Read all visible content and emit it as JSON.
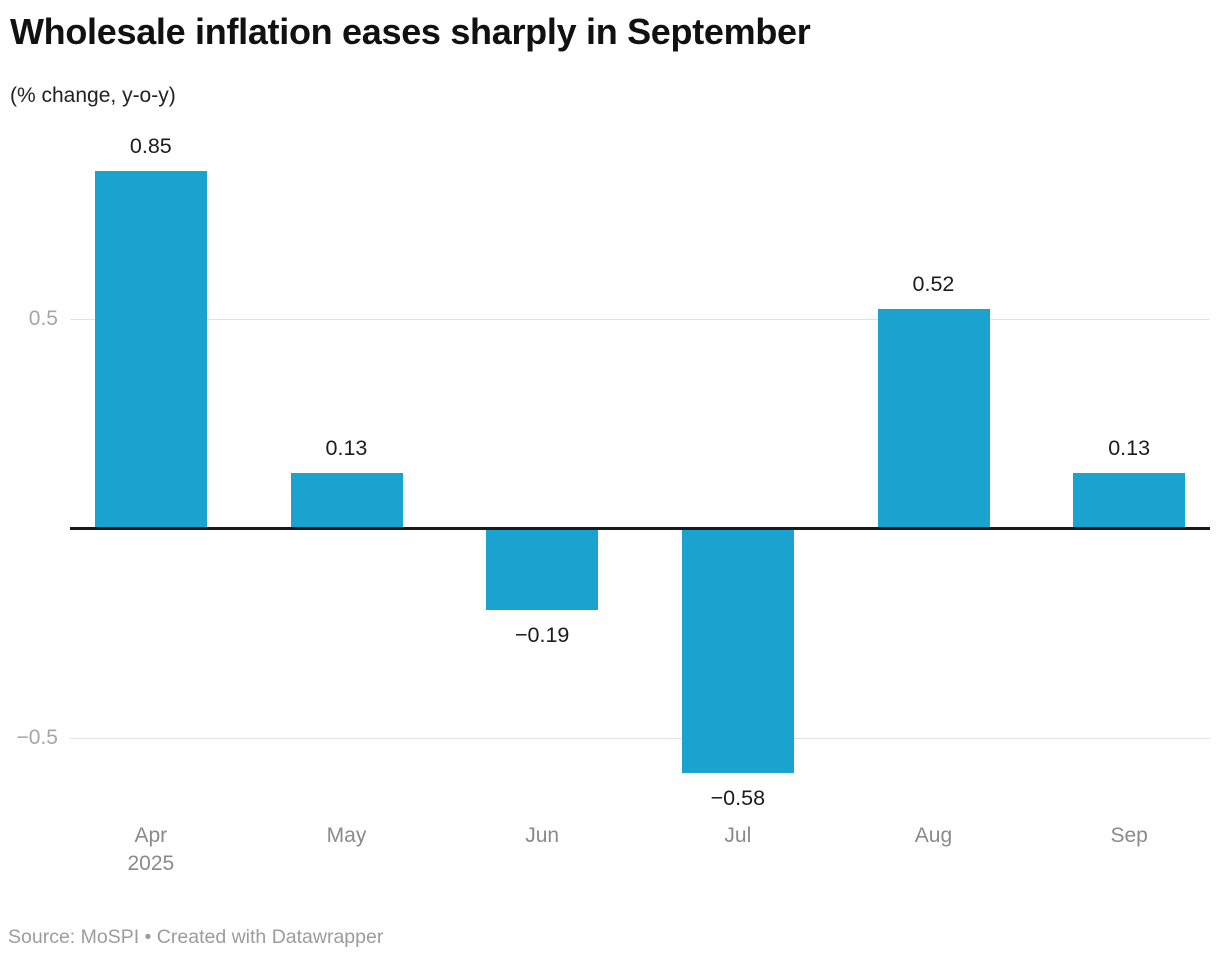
{
  "header": {
    "title": "Wholesale inflation eases sharply in September",
    "subtitle": "(% change, y-o-y)"
  },
  "footer": {
    "text": "Source: MoSPI • Created with Datawrapper"
  },
  "colors": {
    "bar": "#1aa3ce",
    "zero_line": "#1a1a1a",
    "gridline": "#e2e2e2",
    "tick_label": "#a6a6a6",
    "month_label": "#8a8a8a",
    "value_label": "#1c1c1c",
    "footer_text": "#9c9c9c"
  },
  "chart_data": {
    "type": "bar",
    "title": "Wholesale inflation eases sharply in September",
    "subtitle": "(% change, y-o-y)",
    "categories": [
      "Apr",
      "May",
      "Jun",
      "Jul",
      "Aug",
      "Sep"
    ],
    "category_sublabels": [
      "2025",
      "",
      "",
      "",
      "",
      ""
    ],
    "values": [
      0.85,
      0.13,
      -0.19,
      -0.58,
      0.52,
      0.13
    ],
    "value_labels": [
      "0.85",
      "0.13",
      "−0.19",
      "−0.58",
      "0.52",
      "0.13"
    ],
    "y_ticks": [
      {
        "value": 0.5,
        "label": "0.5"
      },
      {
        "value": -0.5,
        "label": "−0.5"
      }
    ],
    "ylim": [
      -0.75,
      1.0
    ],
    "grid": "horizontal",
    "legend": "none",
    "source_note": "Source: MoSPI • Created with Datawrapper"
  }
}
